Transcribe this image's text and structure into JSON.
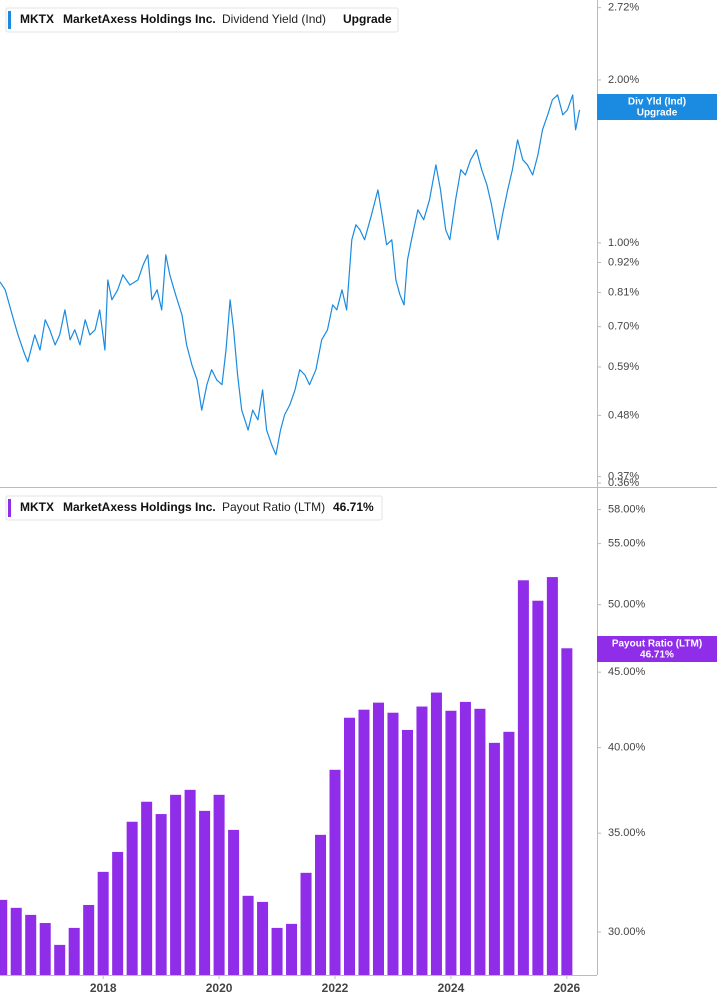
{
  "chart_data": [
    {
      "type": "line",
      "ticker": "MKTX",
      "company": "MarketAxess Holdings Inc.",
      "log_scale": true,
      "xlim": [
        2016.22,
        2026.52
      ],
      "ylim": [
        0.354,
        2.81
      ],
      "yticks": [
        {
          "value": 2.72,
          "label": "2.72%"
        },
        {
          "value": 2,
          "label": "2.00%"
        },
        {
          "value": 1,
          "label": "1.00%"
        },
        {
          "value": 0.92,
          "label": "0.92%"
        },
        {
          "value": 0.81,
          "label": "0.81%"
        },
        {
          "value": 0.7,
          "label": "0.70%"
        },
        {
          "value": 0.59,
          "label": "0.59%"
        },
        {
          "value": 0.48,
          "label": "0.48%"
        },
        {
          "value": 0.37,
          "label": "0.37%"
        },
        {
          "value": 0.36,
          "label": "0.36%"
        }
      ],
      "series": [
        {
          "name": "Dividend Yield (Ind)",
          "short_name": "Div Yld (Ind)",
          "status": "Upgrade",
          "color": "#1a8be0",
          "x": [
            2016.22,
            2016.31,
            2016.43,
            2016.53,
            2016.65,
            2016.7,
            2016.82,
            2016.91,
            2017.0,
            2017.08,
            2017.17,
            2017.25,
            2017.34,
            2017.43,
            2017.51,
            2017.6,
            2017.69,
            2017.77,
            2017.86,
            2017.94,
            2018.03,
            2018.08,
            2018.15,
            2018.25,
            2018.34,
            2018.46,
            2018.6,
            2018.69,
            2018.77,
            2018.84,
            2018.93,
            2019.01,
            2019.08,
            2019.15,
            2019.25,
            2019.36,
            2019.44,
            2019.53,
            2019.62,
            2019.7,
            2019.79,
            2019.87,
            2019.96,
            2020.05,
            2020.12,
            2020.19,
            2020.25,
            2020.32,
            2020.39,
            2020.5,
            2020.58,
            2020.67,
            2020.75,
            2020.82,
            2020.91,
            2020.98,
            2021.06,
            2021.13,
            2021.22,
            2021.31,
            2021.39,
            2021.48,
            2021.56,
            2021.67,
            2021.77,
            2021.87,
            2021.96,
            2022.03,
            2022.12,
            2022.2,
            2022.29,
            2022.36,
            2022.43,
            2022.51,
            2022.63,
            2022.74,
            2022.81,
            2022.89,
            2022.98,
            2023.05,
            2023.12,
            2023.19,
            2023.25,
            2023.32,
            2023.43,
            2023.53,
            2023.63,
            2023.74,
            2023.82,
            2023.91,
            2023.98,
            2024.08,
            2024.17,
            2024.25,
            2024.34,
            2024.44,
            2024.53,
            2024.62,
            2024.7,
            2024.81,
            2024.89,
            2024.98,
            2025.06,
            2025.15,
            2025.24,
            2025.32,
            2025.41,
            2025.5,
            2025.58,
            2025.67,
            2025.75,
            2025.84,
            2025.93,
            2026.01,
            2026.1,
            2026.15,
            2026.22
          ],
          "values": [
            0.847,
            0.819,
            0.736,
            0.676,
            0.621,
            0.603,
            0.676,
            0.634,
            0.721,
            0.691,
            0.648,
            0.676,
            0.752,
            0.662,
            0.691,
            0.648,
            0.721,
            0.676,
            0.691,
            0.752,
            0.634,
            0.854,
            0.785,
            0.819,
            0.873,
            0.836,
            0.854,
            0.911,
            0.95,
            0.785,
            0.819,
            0.752,
            0.95,
            0.873,
            0.802,
            0.736,
            0.648,
            0.595,
            0.558,
            0.491,
            0.547,
            0.583,
            0.558,
            0.547,
            0.634,
            0.785,
            0.691,
            0.57,
            0.491,
            0.451,
            0.491,
            0.471,
            0.535,
            0.451,
            0.423,
            0.406,
            0.451,
            0.481,
            0.502,
            0.535,
            0.583,
            0.57,
            0.547,
            0.583,
            0.662,
            0.691,
            0.768,
            0.752,
            0.819,
            0.752,
            1.013,
            1.08,
            1.057,
            1.013,
            1.127,
            1.253,
            1.127,
            0.992,
            1.013,
            0.854,
            0.802,
            0.768,
            0.93,
            1.013,
            1.151,
            1.103,
            1.201,
            1.394,
            1.253,
            1.057,
            1.013,
            1.201,
            1.365,
            1.335,
            1.424,
            1.486,
            1.365,
            1.28,
            1.176,
            1.013,
            1.127,
            1.253,
            1.365,
            1.55,
            1.424,
            1.394,
            1.335,
            1.454,
            1.618,
            1.724,
            1.838,
            1.877,
            1.724,
            1.761,
            1.877,
            1.618,
            1.761
          ]
        }
      ]
    },
    {
      "type": "bar",
      "ticker": "MKTX",
      "company": "MarketAxess Holdings Inc.",
      "log_scale": true,
      "xlim": [
        2016.22,
        2026.52
      ],
      "xticks": [
        2018,
        2020,
        2022,
        2024,
        2026
      ],
      "ylim": [
        28.05,
        59.8
      ],
      "yticks": [
        {
          "value": 58,
          "label": "58.00%"
        },
        {
          "value": 55,
          "label": "55.00%"
        },
        {
          "value": 50,
          "label": "50.00%"
        },
        {
          "value": 45,
          "label": "45.00%"
        },
        {
          "value": 40,
          "label": "40.00%"
        },
        {
          "value": 35,
          "label": "35.00%"
        },
        {
          "value": 30,
          "label": "30.00%"
        }
      ],
      "series": [
        {
          "name": "Payout Ratio (LTM)",
          "color": "#8f2de8",
          "x": [
            2016.25,
            2016.5,
            2016.75,
            2017,
            2017.25,
            2017.5,
            2017.75,
            2018,
            2018.25,
            2018.5,
            2018.75,
            2019,
            2019.25,
            2019.5,
            2019.75,
            2020,
            2020.25,
            2020.5,
            2020.75,
            2021,
            2021.25,
            2021.5,
            2021.75,
            2022,
            2022.25,
            2022.5,
            2022.75,
            2023,
            2023.25,
            2023.5,
            2023.75,
            2024,
            2024.25,
            2024.5,
            2024.75,
            2025,
            2025.25,
            2025.5,
            2025.75,
            2026
          ],
          "values": [
            31.54,
            31.15,
            30.81,
            30.42,
            29.4,
            30.19,
            31.29,
            32.95,
            33.99,
            35.63,
            36.76,
            36.06,
            37.16,
            37.45,
            36.24,
            37.16,
            35.18,
            31.74,
            31.44,
            30.19,
            30.38,
            32.9,
            34.91,
            38.64,
            41.91,
            42.44,
            42.91,
            42.24,
            41.12,
            42.65,
            43.59,
            42.37,
            42.96,
            42.5,
            40.3,
            41.0,
            51.94,
            50.31,
            52.2,
            46.71
          ],
          "value_labels": [
            null,
            null,
            null,
            null,
            null,
            null,
            null,
            null,
            null,
            null,
            null,
            null,
            null,
            null,
            null,
            null,
            null,
            null,
            null,
            null,
            null,
            null,
            null,
            null,
            null,
            null,
            null,
            null,
            null,
            null,
            null,
            null,
            null,
            null,
            null,
            null,
            null,
            null,
            null,
            "46.71%"
          ]
        }
      ]
    }
  ]
}
